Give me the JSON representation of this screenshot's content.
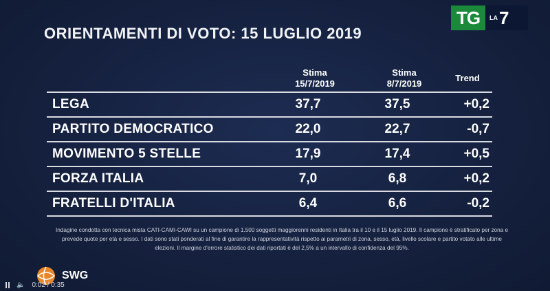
{
  "title": "ORIENTAMENTI DI VOTO: 15 LUGLIO 2019",
  "logo": {
    "tg": "TG",
    "la": "LA",
    "seven": "7"
  },
  "columns": {
    "c1_label": "Stima",
    "c1_date": "15/7/2019",
    "c2_label": "Stima",
    "c2_date": "8/7/2019",
    "trend_label": "Trend"
  },
  "rows": [
    {
      "party": "LEGA",
      "v1": "37,7",
      "v2": "37,5",
      "trend": "+0,2"
    },
    {
      "party": "PARTITO DEMOCRATICO",
      "v1": "22,0",
      "v2": "22,7",
      "trend": "-0,7"
    },
    {
      "party": "MOVIMENTO 5 STELLE",
      "v1": "17,9",
      "v2": "17,4",
      "trend": "+0,5"
    },
    {
      "party": "FORZA ITALIA",
      "v1": "7,0",
      "v2": "6,8",
      "trend": "+0,2"
    },
    {
      "party": "FRATELLI D'ITALIA",
      "v1": "6,4",
      "v2": "6,6",
      "trend": "-0,2"
    }
  ],
  "note": "Indagine condotta con tecnica mista CATI-CAMI-CAWI su un campione di 1.500 soggetti maggiorenni residenti in Italia tra il 10 e il 15 luglio 2019. Il campione è stratificato per zona e prevede quote per età e sesso. I dati sono stati ponderati al fine di garantire la rappresentatività rispetto ai parametri di zona, sesso, età, livello scolare e partito votato alle ultime elezioni. Il margine d'errore statistico dei dati riportati è del 2,5% a un intervallo di confidenza del 95%.",
  "swg": "SWG",
  "player": {
    "time": "0:02 / 0:35"
  },
  "colors": {
    "background": "#15213f",
    "tg_green": "#1a8a3a",
    "text": "#ffffff"
  }
}
